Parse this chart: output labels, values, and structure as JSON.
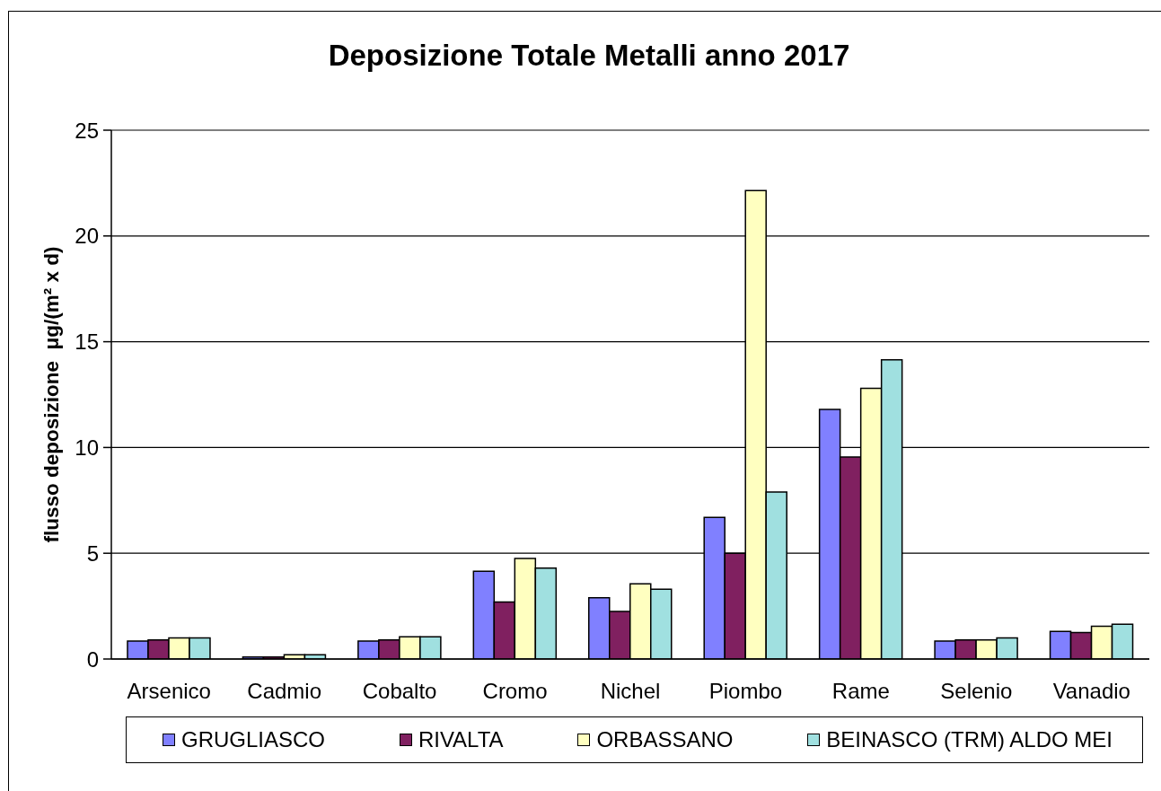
{
  "chart_data": {
    "type": "bar",
    "title": "Deposizione Totale Metalli anno 2017",
    "ylabel": "flusso deposizione  μg/(m² x d)",
    "categories": [
      "Arsenico",
      "Cadmio",
      "Cobalto",
      "Cromo",
      "Nichel",
      "Piombo",
      "Rame",
      "Selenio",
      "Vanadio"
    ],
    "series": [
      {
        "name": "GRUGLIASCO",
        "color": "#8080ff",
        "values": [
          0.85,
          0.1,
          0.85,
          4.15,
          2.9,
          6.7,
          11.8,
          0.85,
          1.3
        ]
      },
      {
        "name": "RIVALTA",
        "color": "#802060",
        "values": [
          0.9,
          0.1,
          0.9,
          2.7,
          2.25,
          5.0,
          9.55,
          0.9,
          1.25
        ]
      },
      {
        "name": "ORBASSANO",
        "color": "#ffffc0",
        "values": [
          1.0,
          0.2,
          1.05,
          4.75,
          3.55,
          22.15,
          12.8,
          0.9,
          1.55
        ]
      },
      {
        "name": "BEINASCO (TRM) ALDO MEI",
        "color": "#a0e0e0",
        "values": [
          1.0,
          0.2,
          1.05,
          4.3,
          3.3,
          7.9,
          14.15,
          1.0,
          1.65
        ]
      }
    ],
    "ylim": [
      0,
      25
    ],
    "yticks": [
      0,
      5,
      10,
      15,
      20,
      25
    ],
    "grid": "y",
    "legend": "bottom"
  }
}
